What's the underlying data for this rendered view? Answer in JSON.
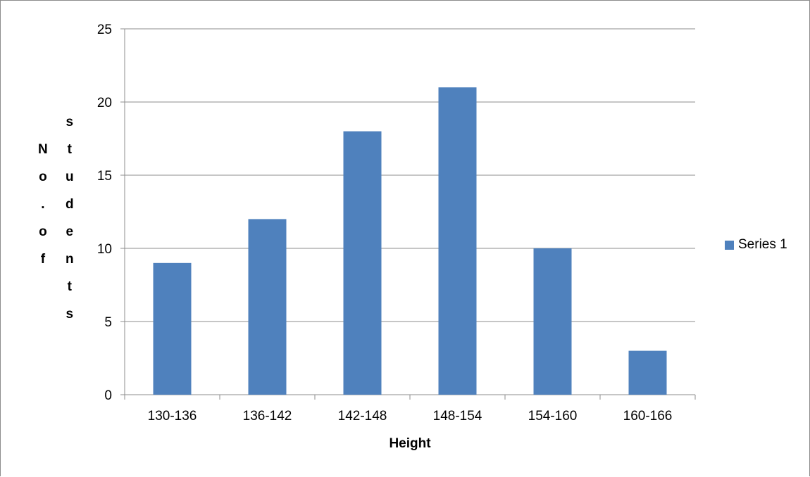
{
  "chart_data": {
    "type": "bar",
    "title": "",
    "xlabel": "Height",
    "ylabel": "No. of students",
    "ylabel_col1": [
      "N",
      "o",
      ".",
      "o",
      "f"
    ],
    "ylabel_col2": [
      "s",
      "t",
      "u",
      "d",
      "e",
      "n",
      "t",
      "s"
    ],
    "categories": [
      "130-136",
      "136-142",
      "142-148",
      "148-154",
      "154-160",
      "160-166"
    ],
    "series": [
      {
        "name": "Series 1",
        "values": [
          9,
          12,
          18,
          21,
          10,
          3
        ]
      }
    ],
    "ylim": [
      0,
      25
    ],
    "yticks": [
      0,
      5,
      10,
      15,
      20,
      25
    ],
    "grid": true,
    "legend": "right",
    "colors": {
      "bar": "#4f81bd",
      "grid": "#8c8c8c",
      "axis": "#8c8c8c",
      "text": "#000000"
    }
  }
}
